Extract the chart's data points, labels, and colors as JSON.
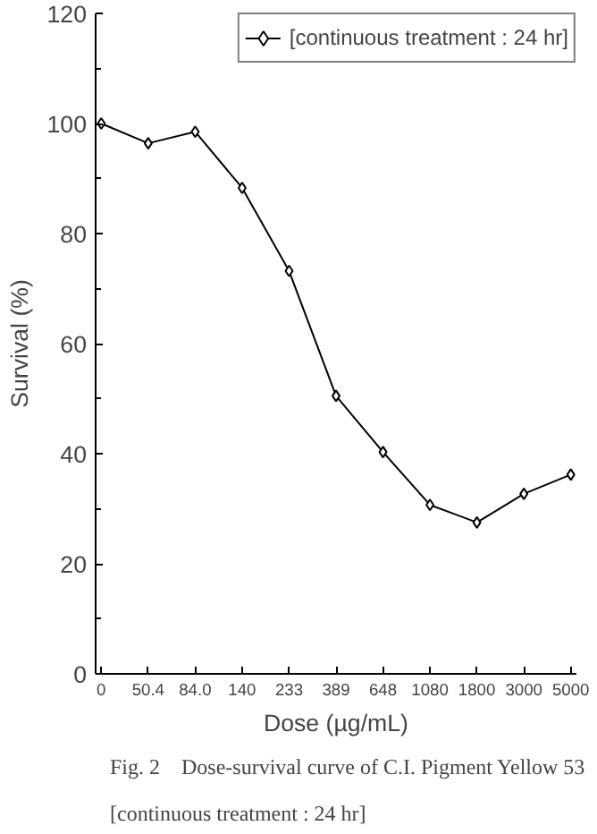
{
  "chart_data": {
    "type": "line",
    "xlabel": "Dose (µg/mL)",
    "ylabel": "Survival (%)",
    "categories": [
      "0",
      "50.4",
      "84.0",
      "140",
      "233",
      "389",
      "648",
      "1080",
      "1800",
      "3000",
      "5000"
    ],
    "series": [
      {
        "name": "[continuous treatment : 24 hr]",
        "color": "#000000",
        "values": [
          100,
          96.4,
          98.5,
          88.3,
          73.2,
          50.5,
          40.3,
          30.7,
          27.5,
          32.7,
          36.2
        ]
      }
    ],
    "ylim": [
      0,
      120
    ],
    "yticks": [
      0,
      20,
      40,
      60,
      80,
      100,
      120
    ],
    "marker": "diamond",
    "line_style": "solid",
    "legend": "top right",
    "grid": false,
    "annotations": [
      "Fig. 2　Dose-survival curve of C.I. Pigment Yellow 53",
      "[continuous treatment : 24 hr]"
    ]
  }
}
